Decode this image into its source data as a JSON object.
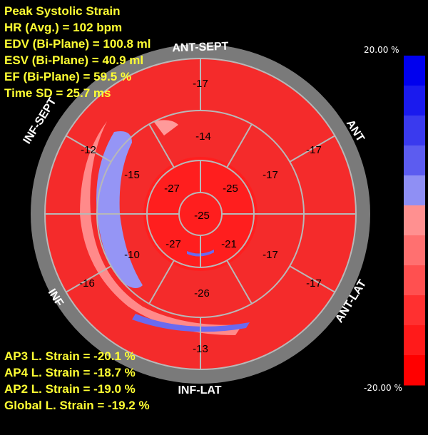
{
  "info": {
    "title": "Peak Systolic Strain",
    "hr": "HR (Avg.) = 102 bpm",
    "edv": "EDV (Bi-Plane) = 100.8 ml",
    "esv": "ESV (Bi-Plane) = 40.9 ml",
    "ef": "EF (Bi-Plane) = 59.5 %",
    "timesd": "Time SD = 25.7 ms"
  },
  "strain": {
    "ap3": "AP3 L. Strain = -20.1 %",
    "ap4": "AP4 L. Strain = -18.7 %",
    "ap2": "AP2 L. Strain = -19.0 %",
    "global": "Global L. Strain = -19.2 %"
  },
  "walls": {
    "ant_sept": "ANT-SEPT",
    "ant": "ANT",
    "ant_lat": "ANT-LAT",
    "inf_lat": "INF-LAT",
    "inf": "INF",
    "inf_sept": "INF-SEPT"
  },
  "segments": {
    "basal": [
      "-17",
      "-17",
      "-17",
      "-13",
      "-16",
      "-12"
    ],
    "mid": [
      "-14",
      "-17",
      "-17",
      "-26",
      "-10",
      "-15"
    ],
    "apical": [
      "-25",
      "-21",
      "-27",
      "-27"
    ],
    "apex": "-25"
  },
  "scale": {
    "max": "20.00 %",
    "min": "-20.00 %",
    "colors": [
      "#0000ee",
      "#1a1aee",
      "#3a3aee",
      "#5c5cf0",
      "#8f8ff4",
      "#ff9090",
      "#ff7070",
      "#ff5050",
      "#ff3030",
      "#ff1a1a",
      "#ff0000"
    ]
  }
}
